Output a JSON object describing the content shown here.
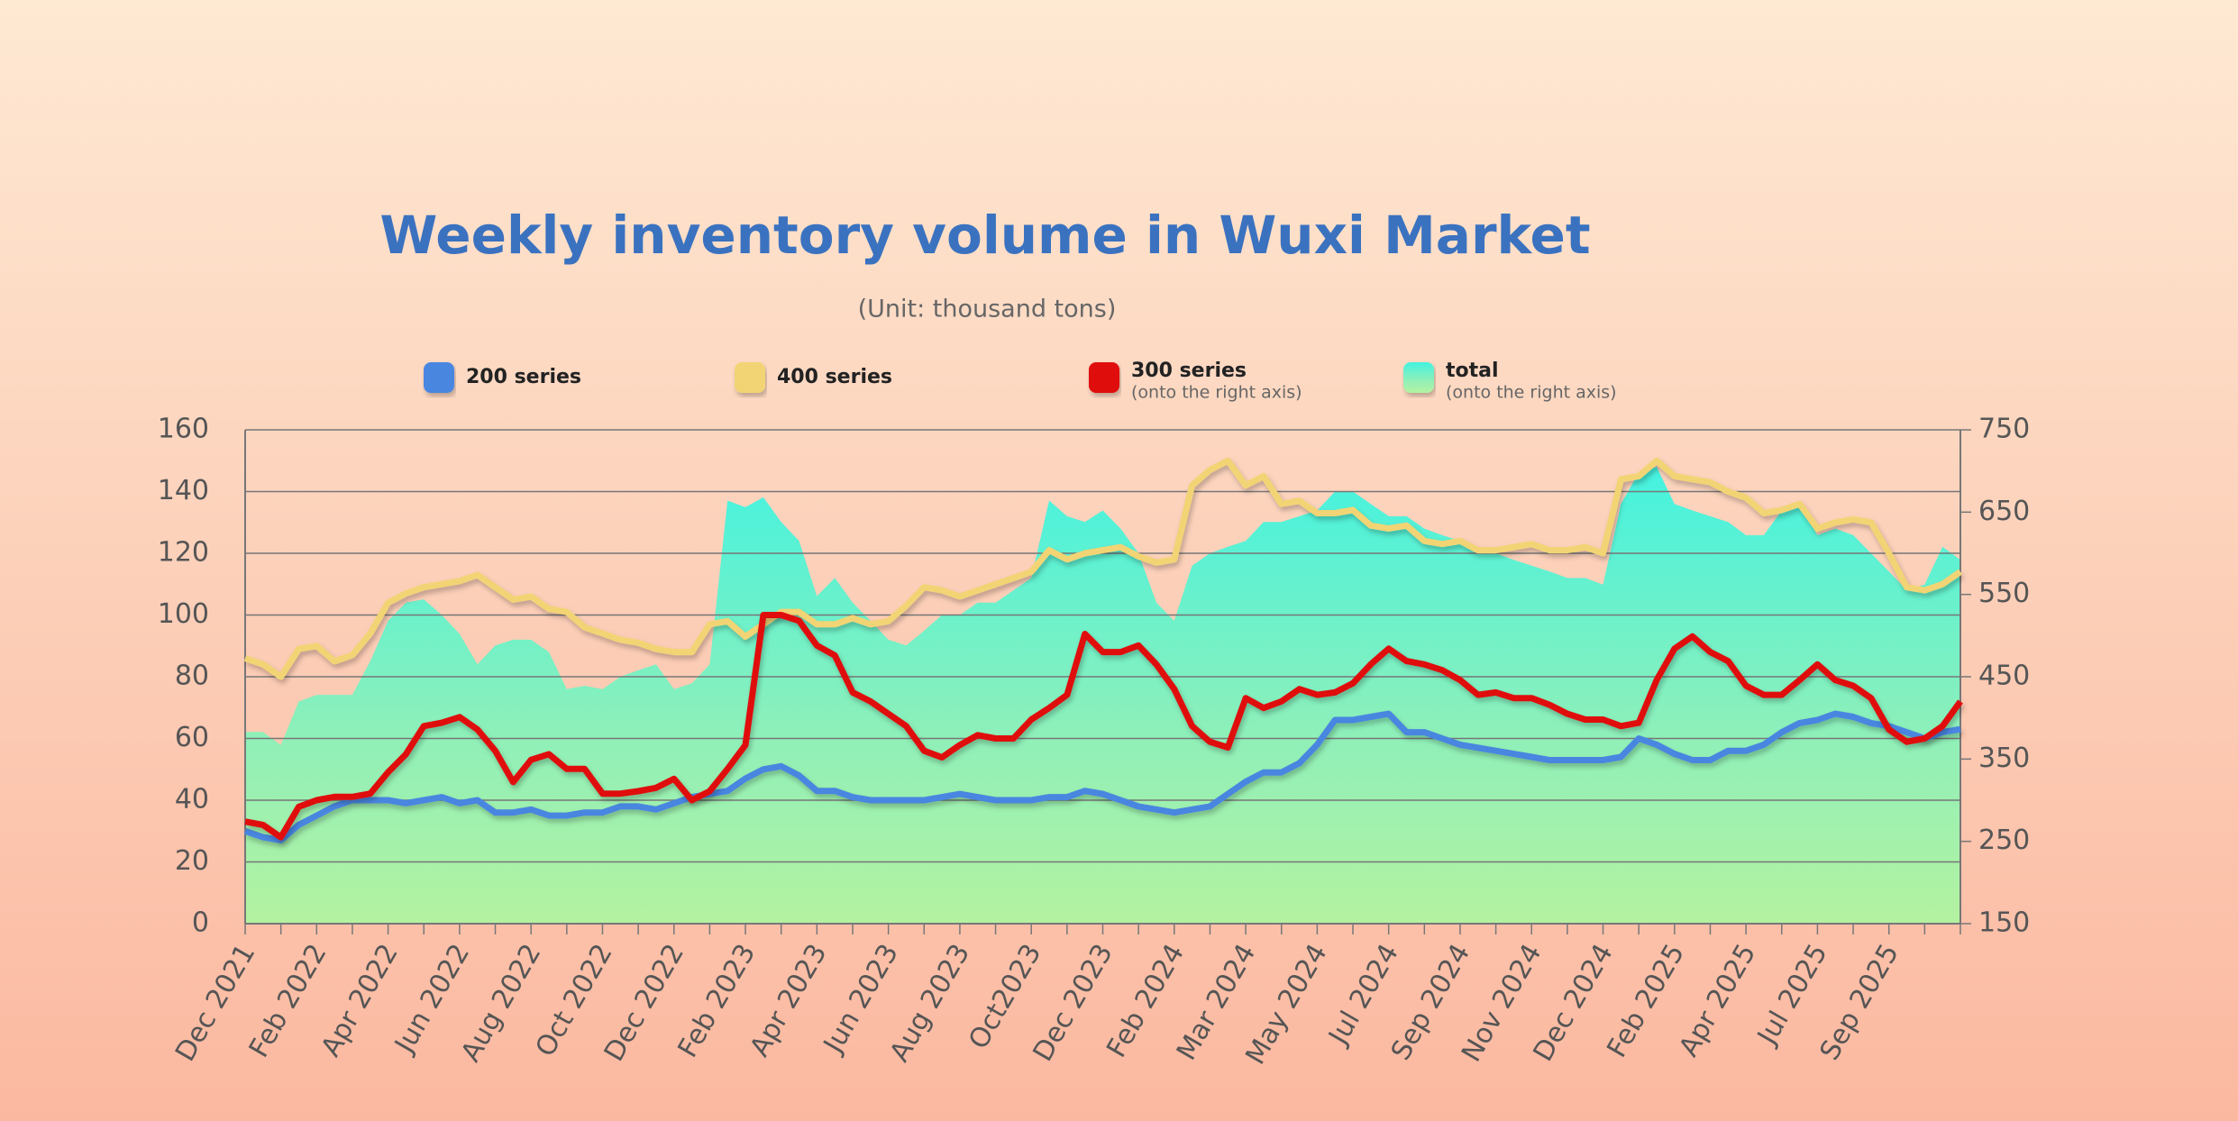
{
  "chart_data": {
    "type": "line",
    "title": "Weekly inventory volume in Wuxi Market",
    "subtitle": "(Unit: thousand tons)",
    "grid": true,
    "categories": [
      "Dec 2021",
      null,
      null,
      null,
      "Feb 2022",
      null,
      null,
      null,
      "Apr 2022",
      null,
      null,
      null,
      "Jun 2022",
      null,
      null,
      null,
      "Aug 2022",
      null,
      null,
      null,
      "Oct 2022",
      null,
      null,
      null,
      "Dec 2022",
      null,
      null,
      null,
      "Feb 2023",
      null,
      null,
      null,
      "Apr 2023",
      null,
      null,
      null,
      "Jun 2023",
      null,
      null,
      null,
      "Aug 2023",
      null,
      null,
      null,
      "Oct2023",
      null,
      null,
      null,
      "Dec 2023",
      null,
      null,
      null,
      "Feb 2024",
      null,
      null,
      null,
      "Mar 2024",
      null,
      null,
      null,
      "May 2024",
      null,
      null,
      null,
      "Jul 2024",
      null,
      null,
      null,
      "Sep 2024",
      null,
      null,
      null,
      "Nov 2024",
      null,
      null,
      null,
      "Dec 2024",
      null,
      null,
      null,
      "Feb 2025",
      null,
      null,
      null,
      "Apr 2025",
      null,
      null,
      null,
      "Jul 2025",
      null,
      null,
      null,
      "Sep 2025",
      null,
      null,
      null,
      null
    ],
    "ylim": [
      0,
      160
    ],
    "yticks": [
      0,
      20,
      40,
      60,
      80,
      100,
      120,
      140,
      160
    ],
    "y2lim": [
      150,
      750
    ],
    "y2ticks": [
      150,
      250,
      350,
      450,
      550,
      650,
      750
    ],
    "series": [
      {
        "name": "total",
        "note": "(onto the right axis)",
        "type": "area",
        "axis": "y2",
        "color": "#4cf2dc",
        "values": [
          383,
          383,
          367,
          420,
          428,
          428,
          428,
          469,
          518,
          540,
          544,
          525,
          502,
          465,
          488,
          495,
          495,
          480,
          435,
          439,
          435,
          450,
          458,
          465,
          435,
          442,
          465,
          664,
          656,
          668,
          638,
          615,
          548,
          570,
          540,
          518,
          495,
          488,
          506,
          525,
          525,
          540,
          540,
          555,
          570,
          664,
          645,
          638,
          652,
          630,
          600,
          540,
          518,
          585,
          600,
          608,
          615,
          638,
          638,
          645,
          652,
          675,
          675,
          660,
          645,
          645,
          630,
          622,
          615,
          600,
          600,
          592,
          585,
          578,
          570,
          570,
          562,
          660,
          698,
          705,
          660,
          652,
          645,
          638,
          622,
          622,
          652,
          660,
          622,
          630,
          622,
          600,
          578,
          555,
          562,
          608,
          592
        ]
      },
      {
        "name": "200 series",
        "type": "line",
        "color": "#4a86e0",
        "values": [
          30,
          28,
          27,
          32,
          35,
          38,
          40,
          40,
          40,
          39,
          40,
          41,
          39,
          40,
          36,
          36,
          37,
          35,
          35,
          36,
          36,
          38,
          38,
          37,
          39,
          41,
          42,
          43,
          47,
          50,
          51,
          48,
          43,
          43,
          41,
          40,
          40,
          40,
          40,
          41,
          42,
          41,
          40,
          40,
          40,
          41,
          41,
          43,
          42,
          40,
          38,
          37,
          36,
          37,
          38,
          42,
          46,
          49,
          49,
          52,
          58,
          66,
          66,
          67,
          68,
          62,
          62,
          60,
          58,
          57,
          56,
          55,
          54,
          53,
          53,
          53,
          53,
          54,
          60,
          58,
          55,
          53,
          53,
          56,
          56,
          58,
          62,
          65,
          66,
          68,
          67,
          65,
          64,
          62,
          60,
          62,
          63
        ]
      },
      {
        "name": "400 series",
        "type": "line",
        "color": "#f2d474",
        "values": [
          86,
          84,
          80,
          89,
          90,
          85,
          87,
          94,
          104,
          107,
          109,
          110,
          111,
          113,
          109,
          105,
          106,
          102,
          101,
          96,
          94,
          92,
          91,
          89,
          88,
          88,
          97,
          98,
          93,
          97,
          101,
          101,
          97,
          97,
          99,
          97,
          98,
          103,
          109,
          108,
          106,
          108,
          110,
          112,
          114,
          121,
          118,
          120,
          121,
          122,
          119,
          117,
          118,
          142,
          147,
          150,
          142,
          145,
          136,
          137,
          133,
          133,
          134,
          129,
          128,
          129,
          124,
          123,
          124,
          121,
          121,
          122,
          123,
          121,
          121,
          122,
          120,
          144,
          145,
          150,
          145,
          144,
          143,
          140,
          138,
          133,
          134,
          136,
          128,
          130,
          131,
          130,
          120,
          109,
          108,
          110,
          114
        ]
      },
      {
        "name": "300 series",
        "note": "(onto the right axis)",
        "type": "line",
        "axis": "y2",
        "color": "#e01010",
        "values": [
          274,
          270,
          255,
          292,
          300,
          304,
          304,
          308,
          334,
          356,
          390,
          394,
          401,
          386,
          360,
          322,
          349,
          356,
          338,
          338,
          308,
          308,
          311,
          315,
          326,
          300,
          311,
          338,
          367,
          525,
          525,
          518,
          488,
          476,
          431,
          420,
          405,
          390,
          360,
          352,
          367,
          379,
          375,
          375,
          398,
          412,
          428,
          502,
          480,
          480,
          488,
          465,
          435,
          390,
          371,
          364,
          424,
          412,
          420,
          435,
          428,
          431,
          442,
          465,
          484,
          469,
          465,
          458,
          446,
          428,
          431,
          424,
          424,
          416,
          405,
          398,
          398,
          390,
          394,
          446,
          484,
          499,
          480,
          469,
          439,
          428,
          428,
          446,
          465,
          446,
          439,
          424,
          386,
          371,
          375,
          390,
          420
        ]
      }
    ]
  }
}
